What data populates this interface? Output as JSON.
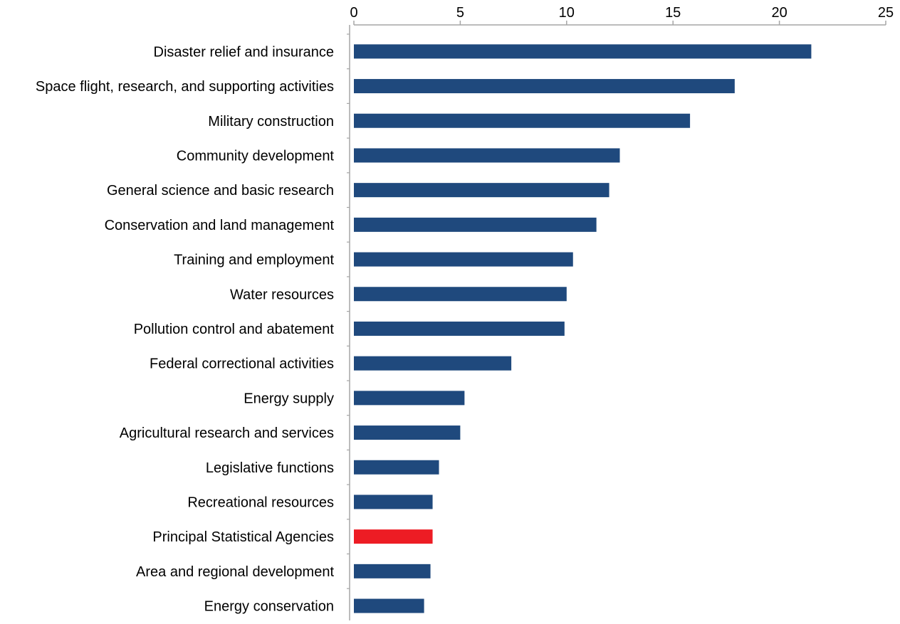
{
  "chart_data": {
    "type": "bar",
    "orientation": "horizontal",
    "title": "",
    "xlabel": "",
    "ylabel": "",
    "xlim": [
      0,
      25
    ],
    "x_ticks": [
      0,
      5,
      10,
      15,
      20,
      25
    ],
    "x_axis_position": "top",
    "grid": false,
    "legend": "none",
    "categories": [
      "Disaster relief and insurance",
      "Space flight, research, and supporting activities",
      "Military construction",
      "Community development",
      "General science and basic research",
      "Conservation and land management",
      "Training and employment",
      "Water resources",
      "Pollution control and abatement",
      "Federal correctional activities",
      "Energy supply",
      "Agricultural research and services",
      "Legislative functions",
      "Recreational resources",
      "Principal Statistical Agencies",
      "Area and regional development",
      "Energy conservation"
    ],
    "values": [
      21.5,
      17.9,
      15.8,
      12.5,
      12.0,
      11.4,
      10.3,
      10.0,
      9.9,
      7.4,
      5.2,
      5.0,
      4.0,
      3.7,
      3.7,
      3.6,
      3.3
    ],
    "highlight_index": 14,
    "colors": {
      "bar": "#1f497d",
      "highlight": "#ed1c24",
      "axis": "#a6a6a6",
      "text": "#000000"
    }
  }
}
